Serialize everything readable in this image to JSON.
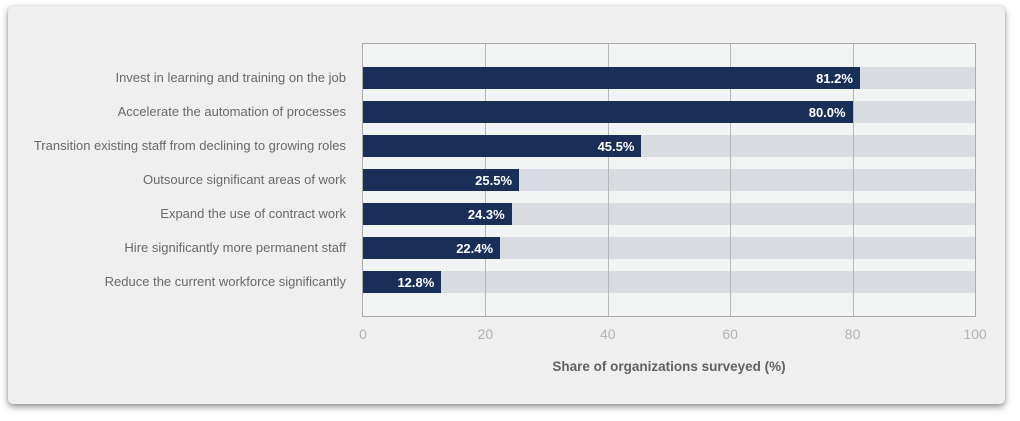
{
  "chart_data": {
    "type": "bar",
    "orientation": "horizontal",
    "categories": [
      "Invest in learning and training on the job",
      "Accelerate the automation of processes",
      "Transition existing staff from declining to growing roles",
      "Outsource significant areas of work",
      "Expand the use of contract work",
      "Hire significantly more permanent staff",
      "Reduce the current workforce significantly"
    ],
    "values": [
      81.2,
      80.0,
      45.5,
      25.5,
      24.3,
      22.4,
      12.8
    ],
    "value_labels": [
      "81.2%",
      "80.0%",
      "45.5%",
      "25.5%",
      "24.3%",
      "22.4%",
      "12.8%"
    ],
    "title": "",
    "xlabel": "Share of organizations surveyed (%)",
    "ylabel": "",
    "xlim": [
      0,
      100
    ],
    "x_ticks": [
      0,
      20,
      40,
      60,
      80,
      100
    ],
    "x_tick_labels": [
      "0",
      "20",
      "40",
      "60",
      "80",
      "100"
    ],
    "grid": true,
    "legend": false,
    "colors": {
      "bar": "#1a2f57",
      "bar_track": "#d8dbdf",
      "plot_background": "#f2f3f3",
      "card_background": "#efefef",
      "gridline": "#b5b7b9",
      "value_label_text": "#ffffff",
      "category_label_text": "#68696b",
      "tick_label_text": "#b1b3b5",
      "axis_title_text": "#5f6163"
    }
  }
}
